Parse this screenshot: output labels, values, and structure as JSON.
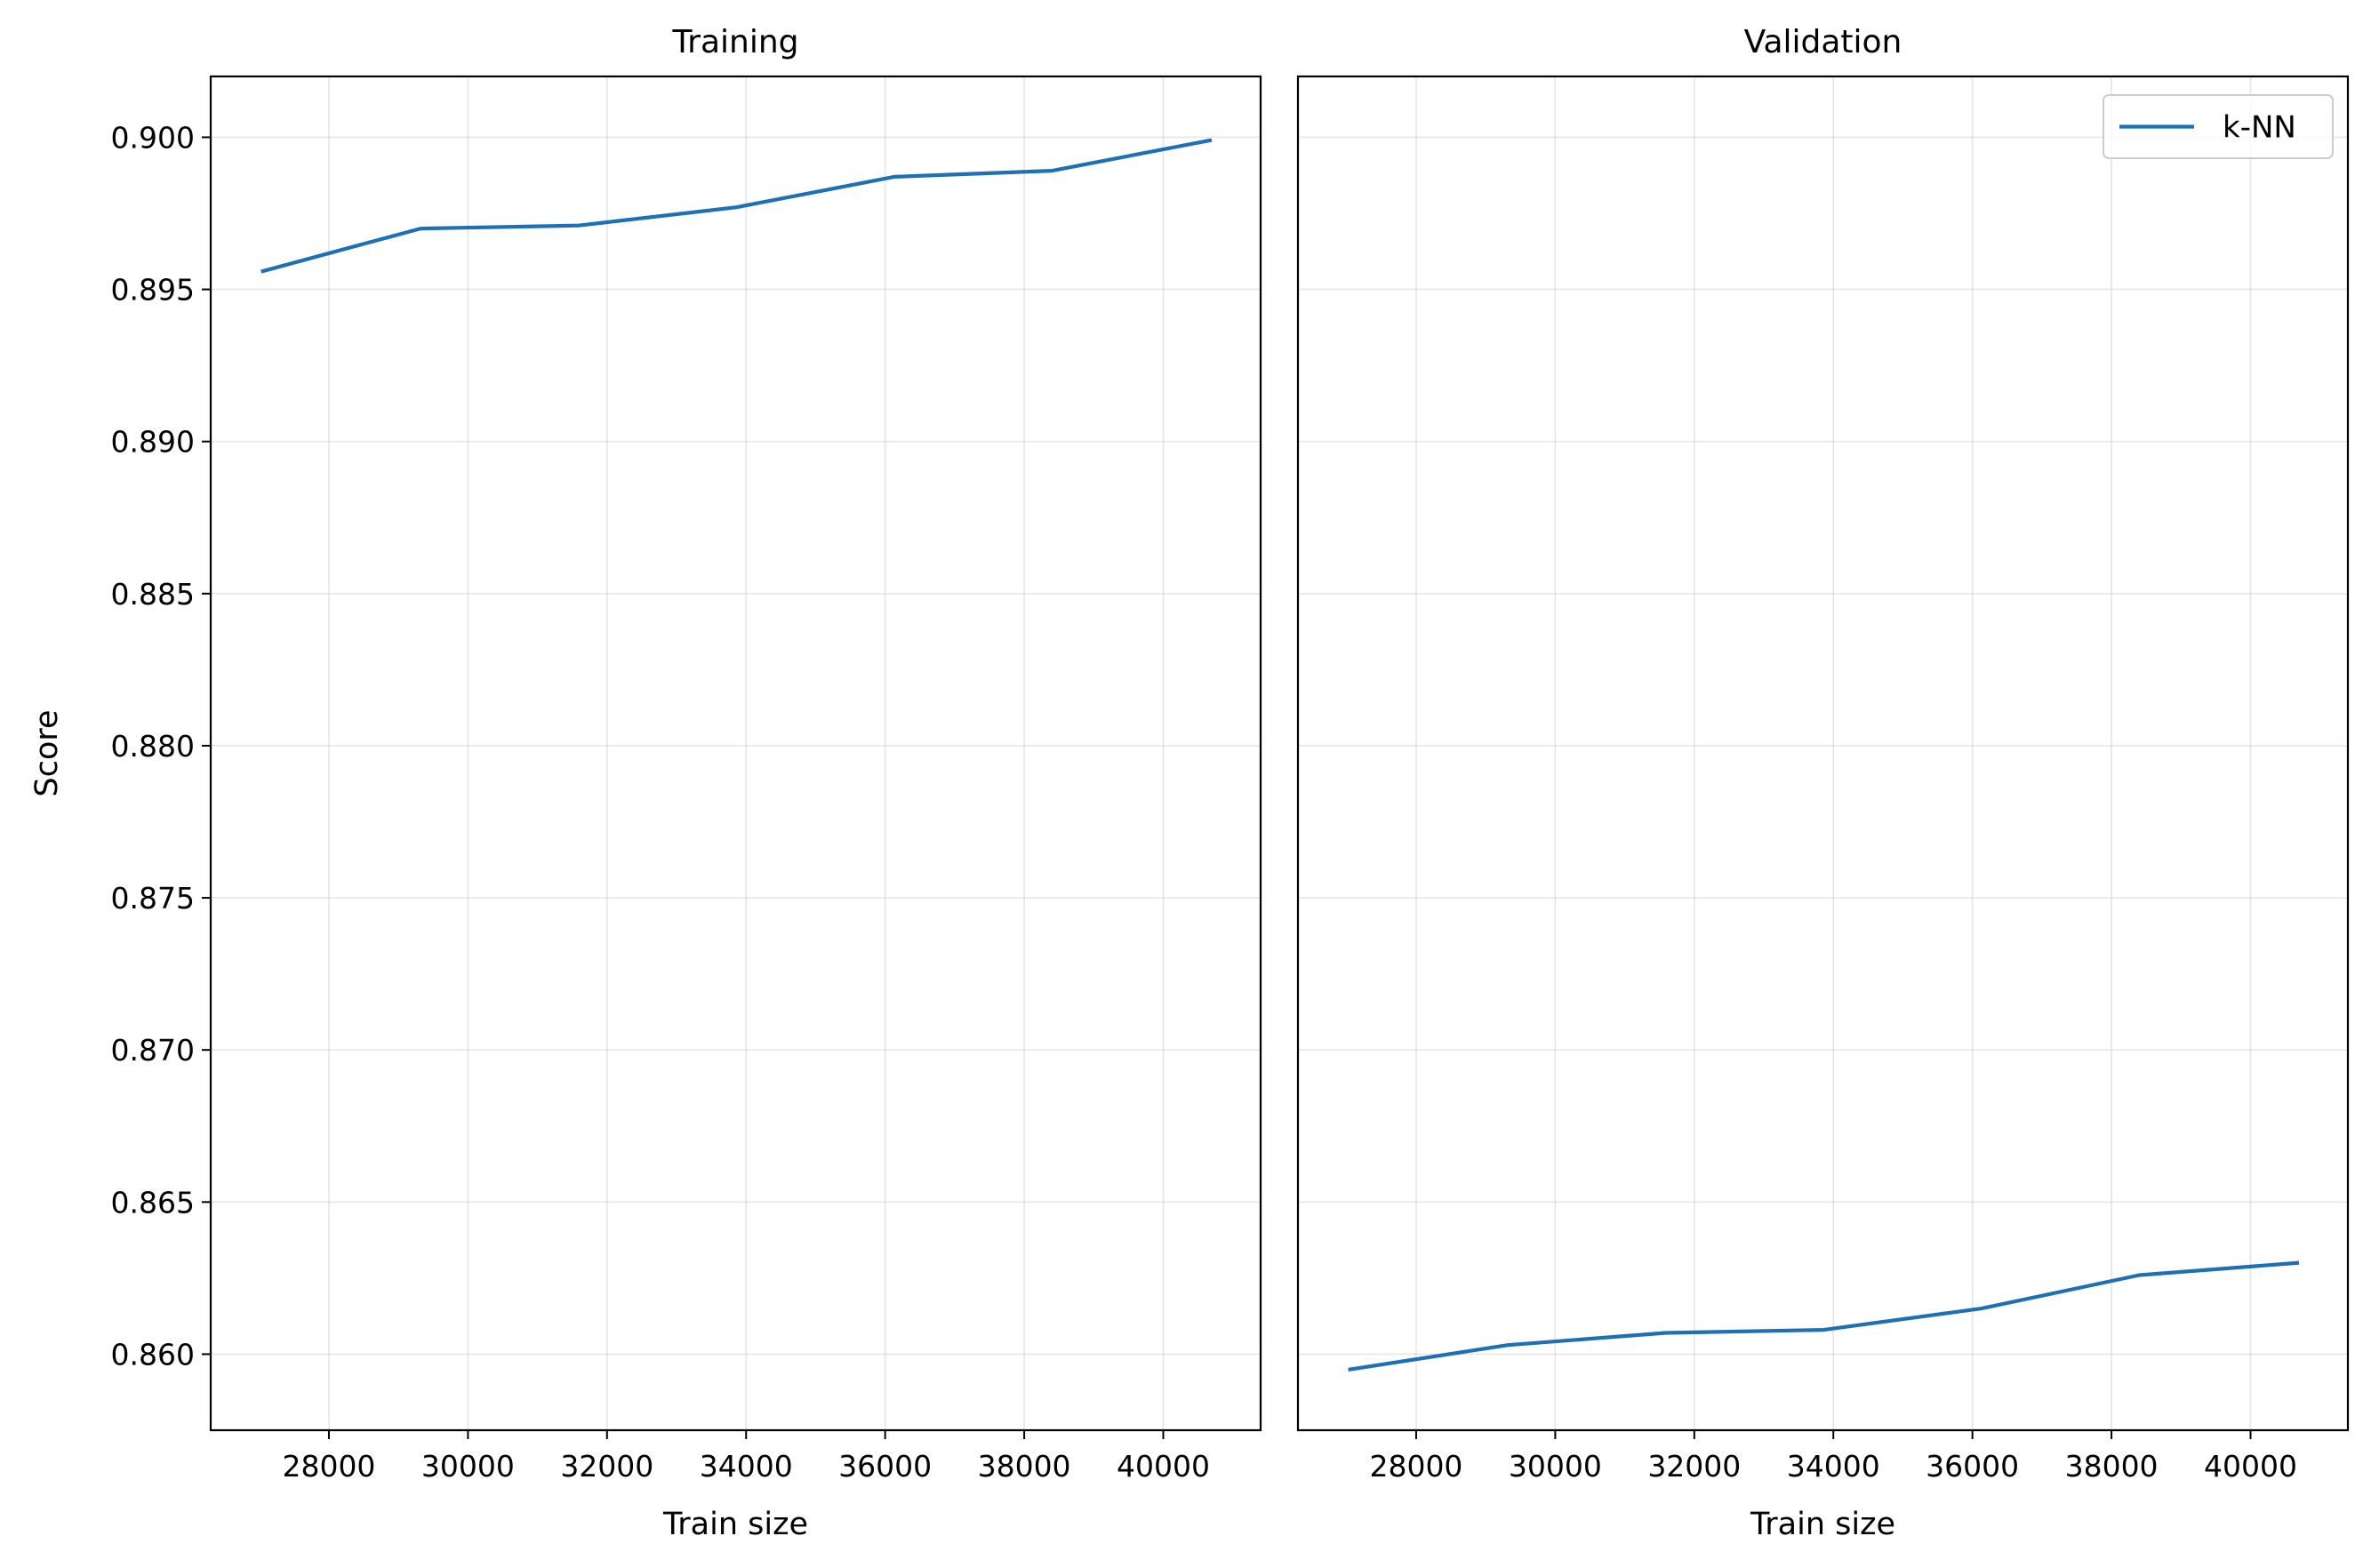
{
  "chart_data": [
    {
      "type": "line",
      "title": "Training",
      "xlabel": "Train size",
      "ylabel": "Score",
      "xlim": [
        26300,
        41400
      ],
      "ylim": [
        0.8575,
        0.902
      ],
      "xticks": [
        28000,
        30000,
        32000,
        34000,
        36000,
        38000,
        40000
      ],
      "xtick_labels": [
        "28000",
        "30000",
        "32000",
        "34000",
        "36000",
        "38000",
        "40000"
      ],
      "yticks": [
        0.86,
        0.865,
        0.87,
        0.875,
        0.88,
        0.885,
        0.89,
        0.895,
        0.9
      ],
      "ytick_labels": [
        "0.860",
        "0.865",
        "0.870",
        "0.875",
        "0.880",
        "0.885",
        "0.890",
        "0.895",
        "0.900"
      ],
      "grid": true,
      "series": [
        {
          "name": "k-NN",
          "color": "#1f6fb4",
          "x": [
            27050,
            29320,
            31590,
            33860,
            36130,
            38400,
            40670
          ],
          "y": [
            0.8956,
            0.897,
            0.8971,
            0.8977,
            0.8987,
            0.8989,
            0.8999
          ]
        }
      ]
    },
    {
      "type": "line",
      "title": "Validation",
      "xlabel": "Train size",
      "ylabel": "",
      "xlim": [
        26300,
        41400
      ],
      "ylim": [
        0.8575,
        0.902
      ],
      "xticks": [
        28000,
        30000,
        32000,
        34000,
        36000,
        38000,
        40000
      ],
      "xtick_labels": [
        "28000",
        "30000",
        "32000",
        "34000",
        "36000",
        "38000",
        "40000"
      ],
      "grid": true,
      "legend": {
        "position": "top-right",
        "entries": [
          "k-NN"
        ]
      },
      "series": [
        {
          "name": "k-NN",
          "color": "#1f6fb4",
          "x": [
            27050,
            29320,
            31590,
            33860,
            36130,
            38400,
            40670
          ],
          "y": [
            0.8595,
            0.8603,
            0.8607,
            0.8608,
            0.8615,
            0.8626,
            0.863
          ]
        }
      ]
    }
  ]
}
